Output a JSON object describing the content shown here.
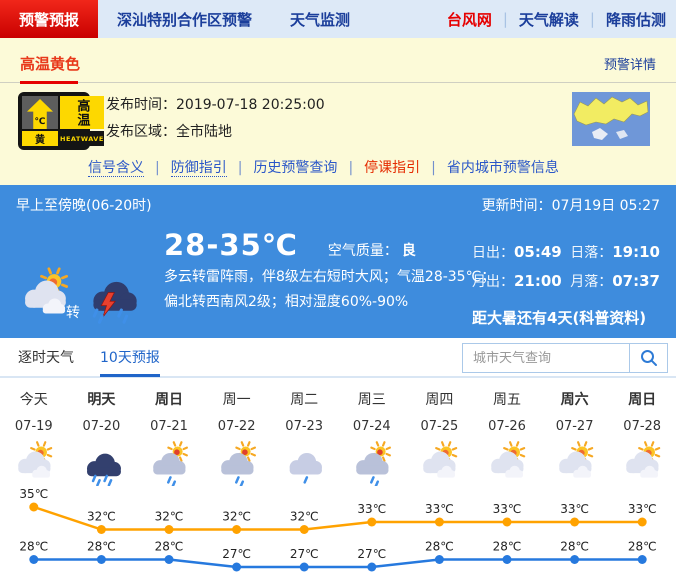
{
  "colors": {
    "primary_blue": "#3e8cdd",
    "nav_active_red": "#d40000",
    "warning_yellow_bg": "#fcfad8",
    "link_blue": "#2b57c8",
    "high_temp_line": "#ffa200",
    "low_temp_line": "#2679de"
  },
  "topnav": {
    "tabs": [
      {
        "label": "预警预报",
        "name": "tab-warning-forecast",
        "active": true
      },
      {
        "label": "深汕特别合作区预警",
        "name": "tab-shenshan-zone-warning",
        "active": false
      },
      {
        "label": "天气监测",
        "name": "tab-weather-monitoring",
        "active": false
      }
    ],
    "links": [
      {
        "label": "台风网",
        "name": "link-typhoon-net",
        "highlight": true
      },
      {
        "label": "天气解读",
        "name": "link-weather-interpretation",
        "highlight": false
      },
      {
        "label": "降雨估测",
        "name": "link-rainfall-estimation",
        "highlight": false
      }
    ]
  },
  "warning": {
    "level_label": "高温黄色",
    "detail_link": "预警详情",
    "sign": {
      "title": "高温",
      "arrow_char": "℃",
      "level_char": "黄",
      "en": "HEATWAVE"
    },
    "publish_time_label": "发布时间：",
    "publish_time": "2019-07-18 20:25:00",
    "area_label": "发布区域：",
    "area": "全市陆地",
    "links": [
      {
        "label": "信号含义",
        "name": "link-signal-meaning",
        "dotted": true,
        "highlight": false
      },
      {
        "label": "防御指引",
        "name": "link-defense-guidelines",
        "dotted": true,
        "highlight": false
      },
      {
        "label": "历史预警查询",
        "name": "link-history-warning-query",
        "dotted": false,
        "highlight": false
      },
      {
        "label": "停课指引",
        "name": "link-class-suspension-guide",
        "dotted": false,
        "highlight": true
      },
      {
        "label": "省内城市预警信息",
        "name": "link-province-city-warnings",
        "dotted": false,
        "highlight": false
      }
    ]
  },
  "current": {
    "period": "早上至傍晚(06-20时)",
    "update_label": "更新时间：",
    "update_time": "07月19日 05:27",
    "icon_from": "partly-cloudy",
    "icon_to": "thunderstorm",
    "transition": "转",
    "temp_range": "28-35℃",
    "air_quality_label": "空气质量：",
    "air_quality": "良",
    "desc_line1": "多云转雷阵雨，伴8级左右短时大风；气温28-35℃；",
    "desc_line2": "偏北转西南风2级；相对湿度60%-90%",
    "sun_moon_rows": [
      [
        {
          "label": "日出：",
          "value": "05:49",
          "name": "sunrise-time"
        },
        {
          "label": "日落：",
          "value": "19:10",
          "name": "sunset-time"
        }
      ],
      [
        {
          "label": "月出：",
          "value": "21:00",
          "name": "moonrise-time"
        },
        {
          "label": "月落：",
          "value": "07:37",
          "name": "moonset-time"
        }
      ]
    ],
    "countdown": "距大暑还有4天",
    "countdown_link": "(科普资料)"
  },
  "forecast": {
    "tabs": [
      {
        "label": "逐时天气",
        "name": "tab-hourly-weather",
        "active": false
      },
      {
        "label": "10天预报",
        "name": "tab-10day-forecast",
        "active": true
      }
    ],
    "search_placeholder": "城市天气查询",
    "days": [
      {
        "name": "今天",
        "date": "07-19",
        "icon": "partly-cloudy",
        "weekend": false
      },
      {
        "name": "明天",
        "date": "07-20",
        "icon": "rain",
        "weekend": true
      },
      {
        "name": "周日",
        "date": "07-21",
        "icon": "shower",
        "weekend": true
      },
      {
        "name": "周一",
        "date": "07-22",
        "icon": "shower",
        "weekend": false
      },
      {
        "name": "周二",
        "date": "07-23",
        "icon": "light-rain",
        "weekend": false
      },
      {
        "name": "周三",
        "date": "07-24",
        "icon": "shower",
        "weekend": false
      },
      {
        "name": "周四",
        "date": "07-25",
        "icon": "partly-cloudy",
        "weekend": false
      },
      {
        "name": "周五",
        "date": "07-26",
        "icon": "partly-cloudy",
        "weekend": false
      },
      {
        "name": "周六",
        "date": "07-27",
        "icon": "partly-cloudy",
        "weekend": true
      },
      {
        "name": "周日",
        "date": "07-28",
        "icon": "partly-cloudy",
        "weekend": true
      }
    ]
  },
  "chart_data": {
    "type": "line",
    "categories": [
      "07-19",
      "07-20",
      "07-21",
      "07-22",
      "07-23",
      "07-24",
      "07-25",
      "07-26",
      "07-27",
      "07-28"
    ],
    "series": [
      {
        "name": "最高气温",
        "color": "#ffa200",
        "values": [
          35,
          32,
          32,
          32,
          32,
          33,
          33,
          33,
          33,
          33
        ]
      },
      {
        "name": "最低气温",
        "color": "#2679de",
        "values": [
          28,
          28,
          28,
          27,
          27,
          27,
          28,
          28,
          28,
          28
        ]
      }
    ],
    "unit": "℃",
    "ylim": [
      26,
      36
    ],
    "grid": false,
    "legend": "none"
  }
}
